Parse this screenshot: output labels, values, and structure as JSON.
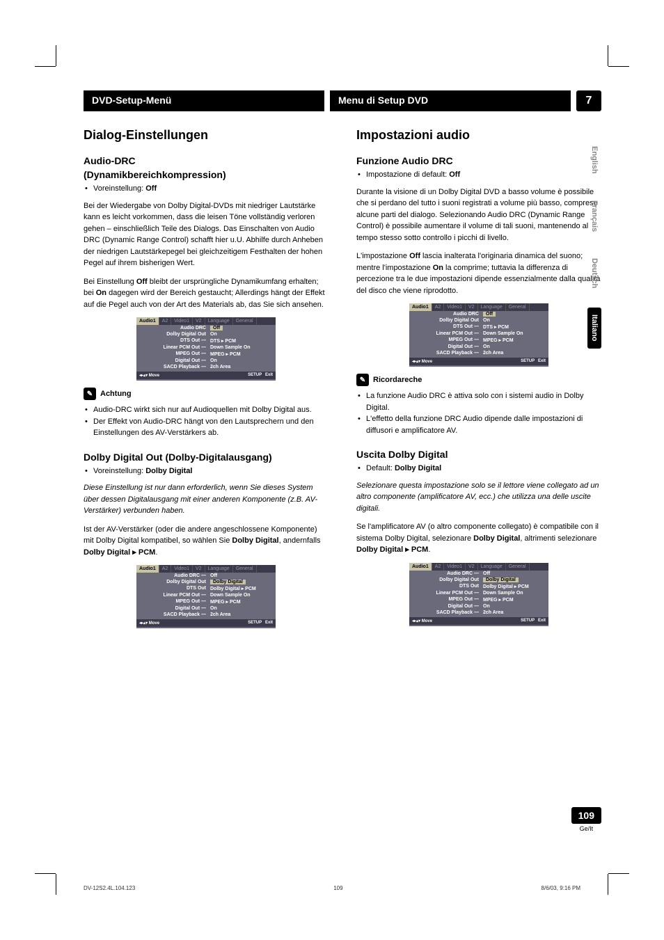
{
  "chapter": "7",
  "header_left": "DVD-Setup-Menü",
  "header_right": "Menu di Setup DVD",
  "lang_tabs": [
    "English",
    "Français",
    "Deutsch",
    "Italiano"
  ],
  "lang_active_index": 3,
  "page_number": "109",
  "page_number_sub": "Ge/It",
  "footer": {
    "file": "DV-12S2.4L.104.123",
    "page": "109",
    "date": "8/6/03, 9:16 PM"
  },
  "left": {
    "h1": "Dialog-Einstellungen",
    "sec1": {
      "h2a": "Audio-DRC",
      "h2b": "(Dynamikbereichkompression)",
      "preset_label": "Voreinstellung: ",
      "preset_value": "Off",
      "p1": "Bei der Wiedergabe von Dolby Digital-DVDs mit niedriger Lautstärke kann es leicht vorkommen, dass die leisen Töne vollständig verloren gehen – einschließlich Teile des Dialogs. Das Einschalten von Audio DRC (Dynamic Range Control) schafft hier u.U. Abhilfe durch Anheben der niedrigen Lautstärkepegel bei gleichzeitigem Festhalten der hohen Pegel auf ihrem bisherigen Wert.",
      "p2a": "Bei Einstellung ",
      "p2b": "Off",
      "p2c": " bleibt der ursprüngliche Dynamikumfang erhalten; bei ",
      "p2d": "On",
      "p2e": " dagegen wird der Bereich gestaucht; Allerdings hängt der Effekt auf die Pegel auch von der Art des Materials ab, das Sie sich ansehen.",
      "note_title": "Achtung",
      "note1": "Audio-DRC wirkt sich nur auf Audioquellen mit Dolby Digital aus.",
      "note2": "Der Effekt von Audio-DRC hängt von den Lautsprechern und den Einstellungen des AV-Verstärkers ab."
    },
    "sec2": {
      "h2": "Dolby Digital Out (Dolby-Digitalausgang)",
      "preset_label": "Voreinstellung: ",
      "preset_value": "Dolby Digital",
      "p1": "Diese Einstellung ist nur dann erforderlich, wenn Sie dieses System über dessen Digitalausgang mit einer anderen Komponente (z.B. AV-Verstärker) verbunden haben.",
      "p2a": "Ist der AV-Verstärker (oder die andere angeschlossene Komponente) mit Dolby Digital kompatibel, so wählen Sie ",
      "p2b": "Dolby Digital",
      "p2c": ", andernfalls ",
      "p2d": "Dolby Digital ▸ PCM",
      "p2e": "."
    }
  },
  "right": {
    "h1": "Impostazioni audio",
    "sec1": {
      "h2": "Funzione Audio DRC",
      "preset_label": "Impostazione di default: ",
      "preset_value": "Off",
      "p1": "Durante la visione di un Dolby Digital DVD a basso volume è possibile che si perdano del tutto i suoni registrati a volume più basso, comprese alcune parti del dialogo. Selezionando Audio DRC (Dynamic Range Control) è possibile aumentare il volume di tali suoni, mantenendo al tempo stesso sotto controllo i picchi di livello.",
      "p2a": "L'impostazione ",
      "p2b": "Off",
      "p2c": " lascia inalterata l'originaria dinamica del suono; mentre l'impostazione ",
      "p2d": "On",
      "p2e": " la comprime; tuttavia la differenza di percezione tra le due impostazioni dipende essenzialmente dalla qualità del disco che viene riprodotto.",
      "note_title": "Ricordareche",
      "note1": "La funzione Audio DRC è attiva solo con i sistemi audio in Dolby Digital.",
      "note2": "L'effetto della funzione DRC Audio dipende dalle impostazioni di diffusori e amplificatore AV."
    },
    "sec2": {
      "h2": "Uscita Dolby Digital",
      "preset_label": "Default: ",
      "preset_value": "Dolby Digital",
      "p1": "Selezionare questa impostazione solo se il lettore viene collegato ad un altro componente (amplificatore AV, ecc.) che utilizza una delle uscite digitali.",
      "p2a": "Se l'amplificatore AV (o altro componente collegato) è compatibile con il sistema Dolby Digital, selezionare ",
      "p2b": "Dolby Digital",
      "p2c": ", altrimenti selezionare ",
      "p2d": "Dolby Digital ▸ PCM",
      "p2e": "."
    }
  },
  "menu_common": {
    "tabs": [
      "Audio1",
      "A2",
      "Video1",
      "V2",
      "Language",
      "General"
    ],
    "rows_base": [
      [
        "Audio DRC —",
        "Off"
      ],
      [
        "Dolby Digital Out",
        "On"
      ],
      [
        "DTS Out —",
        "DTS ▸ PCM"
      ],
      [
        "Linear PCM Out —",
        "Down Sample On"
      ],
      [
        "MPEG Out —",
        "MPEG ▸ PCM"
      ],
      [
        "Digital Out —",
        "On"
      ],
      [
        "SACD Playback —",
        "2ch Area"
      ]
    ],
    "footer_move": "◂▸▴▾ Move",
    "footer_setup": "SETUP",
    "footer_exit": "Exit"
  },
  "menu_a": {
    "sel_row": 0,
    "sel_value": "Off",
    "rows": [
      [
        "Audio DRC",
        "Off"
      ],
      [
        "Dolby Digital Out",
        "On"
      ],
      [
        "DTS Out —",
        "DTS ▸ PCM"
      ],
      [
        "Linear PCM Out —",
        "Down Sample On"
      ],
      [
        "MPEG Out —",
        "MPEG ▸ PCM"
      ],
      [
        "Digital Out —",
        "On"
      ],
      [
        "SACD Playback —",
        "2ch Area"
      ]
    ]
  },
  "menu_b": {
    "sel_row": 1,
    "sel_value": "Dolby Digital",
    "rows": [
      [
        "Audio DRC —",
        "Off"
      ],
      [
        "Dolby Digital Out",
        "Dolby Digital"
      ],
      [
        "DTS Out",
        "Dolby Digital ▸ PCM"
      ],
      [
        "Linear PCM Out —",
        "Down Sample On"
      ],
      [
        "MPEG Out —",
        "MPEG ▸ PCM"
      ],
      [
        "Digital Out —",
        "On"
      ],
      [
        "SACD Playback —",
        "2ch Area"
      ]
    ]
  },
  "menu_c": {
    "sel_row": 0,
    "sel_value": "Off",
    "rows": [
      [
        "Audio DRC",
        "Off"
      ],
      [
        "Dolby Digital Out",
        "On"
      ],
      [
        "DTS Out —",
        "DTS ▸ PCM"
      ],
      [
        "Linear PCM Out —",
        "Down Sample On"
      ],
      [
        "MPEG Out —",
        "MPEG ▸ PCM"
      ],
      [
        "Digital Out —",
        "On"
      ],
      [
        "SACD Playback —",
        "2ch Area"
      ]
    ]
  },
  "menu_d": {
    "sel_row": 1,
    "sel_value": "Dolby Digital",
    "rows": [
      [
        "Audio DRC —",
        "Off"
      ],
      [
        "Dolby Digital Out",
        "Dolby Digital"
      ],
      [
        "DTS Out",
        "Dolby Digital ▸ PCM"
      ],
      [
        "Linear PCM Out —",
        "Down Sample On"
      ],
      [
        "MPEG Out —",
        "MPEG ▸ PCM"
      ],
      [
        "Digital Out —",
        "On"
      ],
      [
        "SACD Playback —",
        "2ch Area"
      ]
    ]
  }
}
